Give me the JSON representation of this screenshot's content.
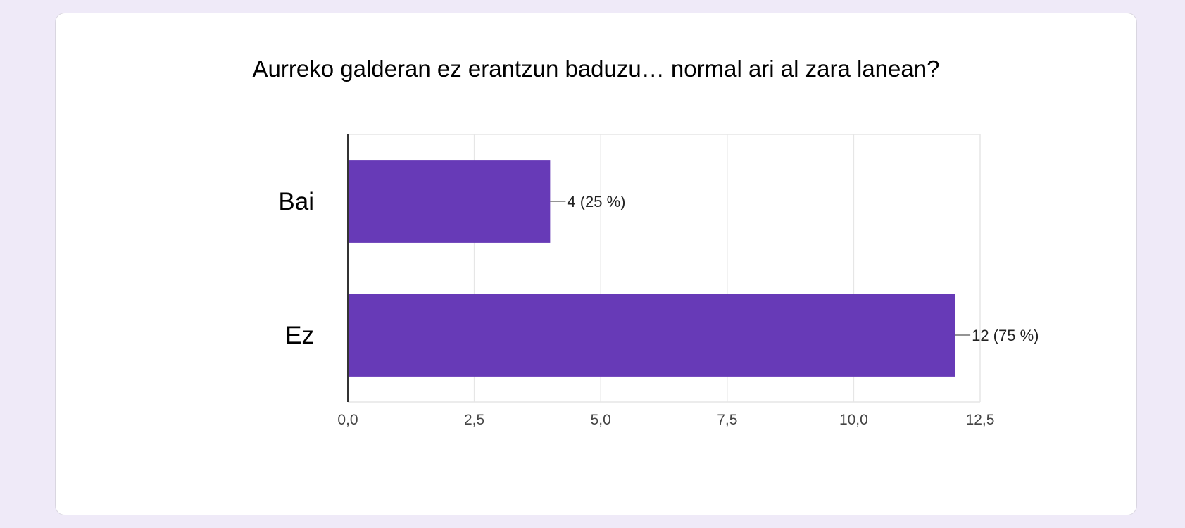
{
  "chart_data": {
    "type": "bar",
    "orientation": "horizontal",
    "title": "Aurreko galderan ez erantzun baduzu… normal ari al zara lanean?",
    "categories": [
      "Bai",
      "Ez"
    ],
    "values": [
      4,
      12
    ],
    "data_labels": [
      "4 (25 %)",
      "12 (75 %)"
    ],
    "xlim": [
      0,
      12.5
    ],
    "xticks": [
      "0,0",
      "2,5",
      "5,0",
      "7,5",
      "10,0",
      "12,5"
    ],
    "xtick_values": [
      0,
      2.5,
      5,
      7.5,
      10,
      12.5
    ],
    "xlabel": "",
    "ylabel": "",
    "grid": true,
    "colors": {
      "bar": "#673ab7",
      "grid": "#e6e6e6",
      "axis": "#333333",
      "background": "#ffffff",
      "page": "#efeaf8"
    }
  }
}
